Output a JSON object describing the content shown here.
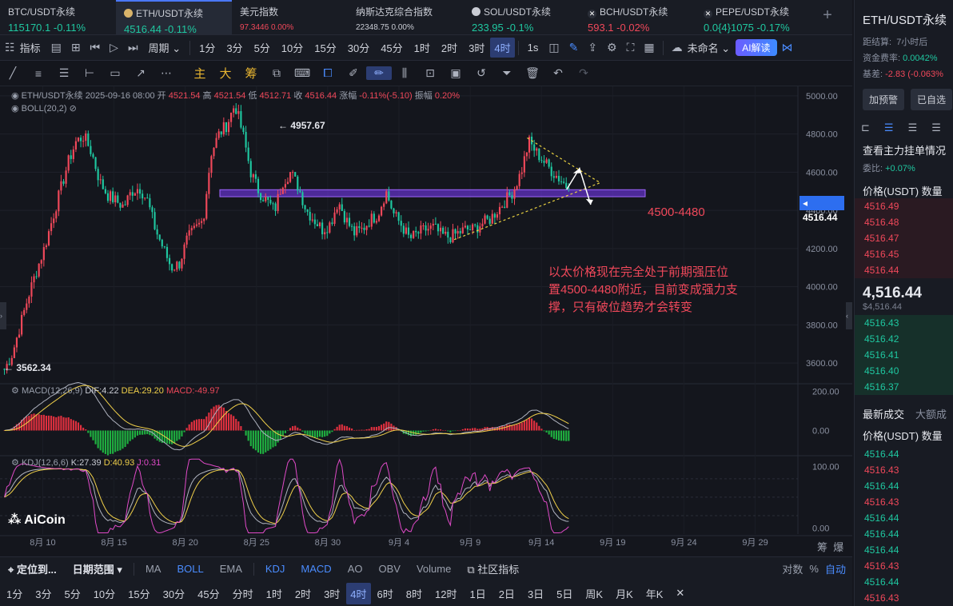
{
  "tickers": [
    {
      "name": "BTC/USDT永续",
      "price": "115170.1",
      "change": "-0.11%",
      "dir": "up"
    },
    {
      "name": "ETH/USDT永续",
      "price": "4516.44",
      "change": "-0.11%",
      "dir": "up",
      "active": true
    },
    {
      "name": "美元指数",
      "price": "97.3446",
      "change": "0.00%",
      "dir": "dn"
    },
    {
      "name": "纳斯达克综合指数",
      "price": "22348.75",
      "change": "0.00%",
      "dir": "plain"
    },
    {
      "name": "SOL/USDT永续",
      "price": "233.95",
      "change": "-0.1%",
      "dir": "up"
    },
    {
      "name": "BCH/USDT永续",
      "price": "593.1",
      "change": "-0.02%",
      "dir": "dn"
    },
    {
      "name": "PEPE/USDT永续",
      "price": "0.0{4}1075",
      "change": "-0.17%",
      "dir": "up"
    }
  ],
  "toolbar": {
    "indicators": "指标",
    "period": "周期",
    "intervals": [
      "1分",
      "3分",
      "5分",
      "10分",
      "15分",
      "30分",
      "45分",
      "1时",
      "2时",
      "3时",
      "4时"
    ],
    "selected_interval": "4时",
    "one_second": "1s",
    "unnamed": "未命名",
    "ai": "AI解读"
  },
  "drawbar": {
    "zhu": "主",
    "da": "大",
    "chou": "筹"
  },
  "legend": {
    "symbol_line": "ETH/USDT永续 2025-09-16 08:00",
    "open_label": "开",
    "open": "4521.54",
    "high_label": "高",
    "high": "4521.54",
    "low_label": "低",
    "low": "4512.71",
    "close_label": "收",
    "close": "4516.44",
    "chg_label": "涨幅",
    "chg": "-0.11%(-5.10)",
    "amp_label": "振幅",
    "amp": "0.20%",
    "boll": "BOLL(20,2)",
    "macd": "MACD(12,26,9)",
    "dif": "DIF:4.22",
    "dea": "DEA:29.20",
    "macd_val": "MACD:-49.97",
    "kdj": "KDJ(12,6,6)",
    "k": "K:27.39",
    "d": "D:40.93",
    "j": "J:0.31"
  },
  "annotation": {
    "zone_label": "4500-4480",
    "text_lines": [
      "以太价格现在完全处于前期强压位",
      "置4500-4480附近，目前变成强力支",
      "撑，只有破位趋势才会转变"
    ],
    "high_mark": "4957.67",
    "low_mark": "3562.34",
    "price_tag": "4516.44"
  },
  "chart_data": {
    "type": "candlestick",
    "symbol": "ETH/USDT永续",
    "interval": "4时",
    "ylim": [
      3500,
      5050
    ],
    "y_ticks": [
      3600,
      3800,
      4000,
      4200,
      4400,
      4600,
      4800,
      5000
    ],
    "y_tick_labels": [
      "3600.00",
      "3800.00",
      "4000.00",
      "4200.00",
      "4400.00",
      "4600.00",
      "4800.00",
      "5000.00"
    ],
    "x_tick_labels": [
      "8月 10",
      "8月 15",
      "8月 20",
      "8月 25",
      "8月 30",
      "9月 4",
      "9月 9",
      "9月 14",
      "9月 19",
      "9月 24",
      "9月 29"
    ],
    "x_range": [
      "2025-08-07",
      "2025-10-02"
    ],
    "last_bar_date": "2025-09-16",
    "approx_close_path": [
      3565,
      3650,
      3800,
      3950,
      4080,
      4200,
      4350,
      4500,
      4650,
      4760,
      4790,
      4700,
      4550,
      4480,
      4450,
      4420,
      4500,
      4520,
      4450,
      4300,
      4200,
      4100,
      4120,
      4250,
      4300,
      4350,
      4700,
      4800,
      4850,
      4957,
      4800,
      4600,
      4500,
      4450,
      4400,
      4550,
      4600,
      4520,
      4400,
      4350,
      4300,
      4330,
      4450,
      4350,
      4280,
      4300,
      4350,
      4380,
      4500,
      4380,
      4320,
      4250,
      4280,
      4300,
      4310,
      4270,
      4260,
      4280,
      4300,
      4300,
      4330,
      4350,
      4400,
      4450,
      4500,
      4600,
      4760,
      4700,
      4650,
      4600,
      4560,
      4516
    ],
    "resistance_zone": [
      4480,
      4500
    ],
    "triangle": {
      "upper": [
        [
          "2025-09-13",
          4780
        ],
        [
          "2025-09-17",
          4570
        ]
      ],
      "lower": [
        [
          "2025-09-09",
          4230
        ],
        [
          "2025-09-17",
          4570
        ]
      ]
    },
    "macd_ylim": [
      -120,
      230
    ],
    "macd_ticks": [
      0,
      200
    ],
    "macd_tick_labels": [
      "0.00",
      "200.00"
    ],
    "kdj_ylim": [
      -10,
      115
    ],
    "kdj_ticks": [
      0,
      100
    ],
    "kdj_tick_labels": [
      "0.00",
      "100.00"
    ]
  },
  "bottom1": {
    "locate": "定位到...",
    "range": "日期范围",
    "ma": "MA",
    "boll": "BOLL",
    "ema": "EMA",
    "kdj": "KDJ",
    "macd": "MACD",
    "ao": "AO",
    "obv": "OBV",
    "volume": "Volume",
    "community": "社区指标",
    "log": "对数",
    "pct": "%",
    "auto": "自动"
  },
  "bottom2": [
    "1分",
    "3分",
    "5分",
    "10分",
    "15分",
    "30分",
    "45分",
    "分时",
    "1时",
    "2时",
    "3时",
    "4时",
    "6时",
    "8时",
    "12时",
    "1日",
    "2日",
    "3日",
    "5日",
    "周K",
    "月K",
    "年K"
  ],
  "bottom2_selected": "4时",
  "right_panel": {
    "title": "ETH/USDT永续",
    "settle": "距结算:",
    "settle_val": "7小时后",
    "funding": "资金费率:",
    "funding_val": "0.0042%",
    "basis": "基差:",
    "basis_val": "-2.83 (-0.063%",
    "alert_btn": "加预警",
    "fav_btn": "已自选",
    "depth_title": "查看主力挂单情况",
    "ratio_label": "委比:",
    "ratio_val": "+0.07%",
    "price_hdr": "价格(USDT)",
    "qty_hdr": "数量",
    "asks": [
      "4516.49",
      "4516.48",
      "4516.47",
      "4516.45",
      "4516.44"
    ],
    "last_price": "4,516.44",
    "last_sub": "$4,516.44",
    "bids": [
      "4516.43",
      "4516.42",
      "4516.41",
      "4516.40",
      "4516.37"
    ],
    "trades_tab": "最新成交",
    "big_tab": "大额成",
    "trades_hdr_price": "价格(USDT)",
    "trades_hdr_qty": "数量",
    "trades": [
      {
        "p": "4516.44",
        "c": "up"
      },
      {
        "p": "4516.43",
        "c": "dn"
      },
      {
        "p": "4516.44",
        "c": "up"
      },
      {
        "p": "4516.43",
        "c": "dn"
      },
      {
        "p": "4516.44",
        "c": "up"
      },
      {
        "p": "4516.44",
        "c": "up"
      },
      {
        "p": "4516.44",
        "c": "up"
      },
      {
        "p": "4516.43",
        "c": "dn"
      },
      {
        "p": "4516.44",
        "c": "up"
      },
      {
        "p": "4516.43",
        "c": "dn"
      }
    ]
  },
  "watermark": "AiCoin",
  "x_end_labels": [
    "筹",
    "爆"
  ]
}
